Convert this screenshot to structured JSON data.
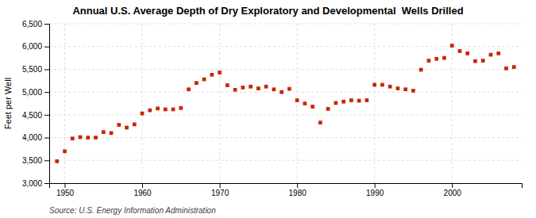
{
  "chart_data": {
    "type": "scatter",
    "title": "Annual U.S. Average Depth of Dry Exploratory and Developmental  Wells Drilled",
    "ylabel": "Feet per Well",
    "annotation": "Source: U.S. Energy Information Administration",
    "x": [
      1949,
      1950,
      1951,
      1952,
      1953,
      1954,
      1955,
      1956,
      1957,
      1958,
      1959,
      1960,
      1961,
      1962,
      1963,
      1964,
      1965,
      1966,
      1967,
      1968,
      1969,
      1970,
      1971,
      1972,
      1973,
      1974,
      1975,
      1976,
      1977,
      1978,
      1979,
      1980,
      1981,
      1982,
      1983,
      1984,
      1985,
      1986,
      1987,
      1988,
      1989,
      1990,
      1991,
      1992,
      1993,
      1994,
      1995,
      1996,
      1997,
      1998,
      1999,
      2000,
      2001,
      2002,
      2003,
      2004,
      2005,
      2006,
      2007,
      2008
    ],
    "values": [
      3480,
      3700,
      3980,
      4010,
      4000,
      4000,
      4120,
      4100,
      4280,
      4220,
      4290,
      4530,
      4600,
      4640,
      4620,
      4620,
      4650,
      5060,
      5200,
      5280,
      5380,
      5430,
      5150,
      5050,
      5100,
      5120,
      5080,
      5120,
      5060,
      5000,
      5070,
      4820,
      4750,
      4680,
      4330,
      4630,
      4760,
      4790,
      4820,
      4810,
      4820,
      5160,
      5160,
      5120,
      5080,
      5060,
      5030,
      5490,
      5690,
      5730,
      5750,
      6020,
      5900,
      5850,
      5680,
      5690,
      5820,
      5850,
      5520,
      5550
    ],
    "color": "#CC2200",
    "marker": "square",
    "xlim": [
      1948,
      2009
    ],
    "xticks": [
      1950,
      1960,
      1970,
      1980,
      1990,
      2000
    ],
    "ylim": [
      3000,
      6500
    ],
    "yticks": [
      {
        "value": 3000,
        "label": "3,000"
      },
      {
        "value": 3500,
        "label": "3,500"
      },
      {
        "value": 4000,
        "label": "4,000"
      },
      {
        "value": 4500,
        "label": "4,500"
      },
      {
        "value": 5000,
        "label": "5,000"
      },
      {
        "value": 5500,
        "label": "5,500"
      },
      {
        "value": 6000,
        "label": "6,000"
      },
      {
        "value": 6500,
        "label": "6,500"
      }
    ],
    "grid": true
  }
}
